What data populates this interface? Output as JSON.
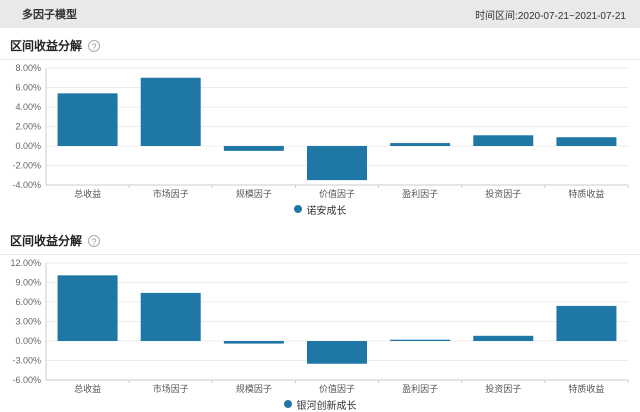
{
  "header": {
    "title": "多因子模型",
    "time_range": "时间区间:2020-07-21~2021-07-21"
  },
  "sections": [
    {
      "title": "区间收益分解",
      "help_icon": "?"
    },
    {
      "title": "区间收益分解",
      "help_icon": "?"
    }
  ],
  "colors": {
    "bar": "#1f77a6",
    "header_bg": "#e9e9e9",
    "grid": "#ededed",
    "axis": "#cccccc",
    "tick_label": "#666666",
    "category_label": "#555555",
    "legend_text": "#333333"
  },
  "chart_data": [
    {
      "type": "bar",
      "title": "区间收益分解",
      "categories": [
        "总收益",
        "市场因子",
        "规模因子",
        "价值因子",
        "盈利因子",
        "投资因子",
        "特质收益"
      ],
      "series": [
        {
          "name": "诺安成长",
          "values": [
            5.4,
            7.0,
            -0.5,
            -3.5,
            0.3,
            1.1,
            0.9
          ]
        }
      ],
      "xlabel": "",
      "ylabel": "",
      "ylim": [
        -4,
        8
      ],
      "ytick_step": 2,
      "ytick_labels": [
        "8.00%",
        "6.00%",
        "4.00%",
        "2.00%",
        "0.00%",
        "-2.00%",
        "-4.00%"
      ],
      "grid": true,
      "legend_position": "bottom"
    },
    {
      "type": "bar",
      "title": "区间收益分解",
      "categories": [
        "总收益",
        "市场因子",
        "规模因子",
        "价值因子",
        "盈利因子",
        "投资因子",
        "特质收益"
      ],
      "series": [
        {
          "name": "银河创新成长",
          "values": [
            10.1,
            7.4,
            -0.4,
            -3.5,
            0.2,
            0.8,
            5.4
          ]
        }
      ],
      "xlabel": "",
      "ylabel": "",
      "ylim": [
        -6,
        12
      ],
      "ytick_step": 3,
      "ytick_labels": [
        "12.00%",
        "9.00%",
        "6.00%",
        "3.00%",
        "0.00%",
        "-3.00%",
        "-6.00%"
      ],
      "grid": true,
      "legend_position": "bottom"
    }
  ]
}
